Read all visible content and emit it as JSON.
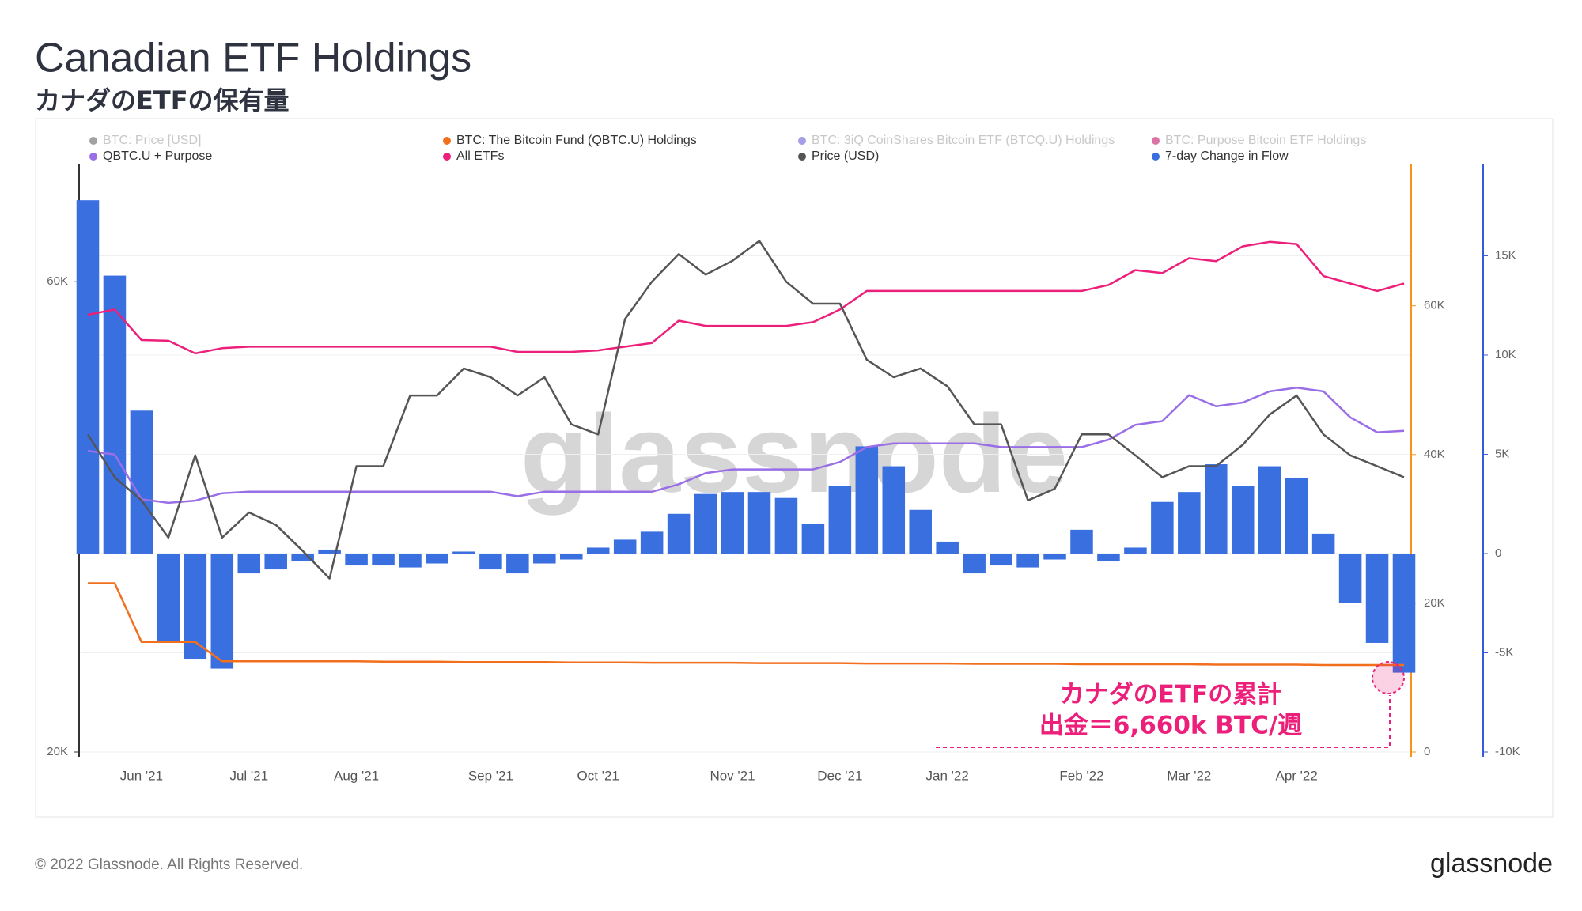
{
  "chart_data": {
    "type": "combo",
    "title": "Canadian ETF Holdings",
    "subtitle": "カナダのETFの保有量",
    "watermark": "glassnode",
    "categories": [
      null,
      null,
      "Jun '21",
      null,
      null,
      null,
      "Jul '21",
      null,
      null,
      null,
      "Aug '21",
      null,
      null,
      null,
      null,
      "Sep '21",
      null,
      null,
      null,
      "Oct '21",
      null,
      null,
      null,
      null,
      "Nov '21",
      null,
      null,
      null,
      "Dec '21",
      null,
      null,
      null,
      "Jan '22",
      null,
      null,
      null,
      null,
      "Feb '22",
      null,
      null,
      null,
      "Mar '22",
      null,
      null,
      null,
      "Apr '22",
      null,
      null,
      null,
      null
    ],
    "log_y": true,
    "ylim": [
      20000,
      78900
    ],
    "yticks": [
      {
        "value": 20000,
        "label": "20K"
      },
      {
        "value": 60000,
        "label": "60K"
      }
    ],
    "y2lim": [
      0,
      79000
    ],
    "y2ticks": [
      0,
      {
        "value": 20000,
        "label": "20K"
      },
      {
        "value": 40000,
        "label": "40K"
      },
      {
        "value": 60000,
        "label": "60K"
      }
    ],
    "y3lim": [
      -10000,
      19600
    ],
    "y3ticks": [
      {
        "value": -10000,
        "label": "-10K"
      },
      {
        "value": -5000,
        "label": "-5K"
      },
      0,
      {
        "value": 5000,
        "label": "5K"
      },
      {
        "value": 10000,
        "label": "10K"
      },
      {
        "value": 15000,
        "label": "15K"
      }
    ],
    "grid": true,
    "series": [
      {
        "name": "BTC: Price [USD]",
        "color": "#555555",
        "hidden": true
      },
      {
        "name": "BTC: The Bitcoin Fund (QBTC.U) Holdings",
        "color": "#f26f1d",
        "type": "line",
        "axis": "y2",
        "values": [
          22700,
          22700,
          14800,
          14800,
          14800,
          12200,
          12200,
          12200,
          12200,
          12200,
          12200,
          12150,
          12150,
          12150,
          12100,
          12100,
          12100,
          12100,
          12050,
          12050,
          12050,
          12000,
          12000,
          12000,
          12000,
          11950,
          11950,
          11950,
          11950,
          11900,
          11900,
          11900,
          11900,
          11850,
          11850,
          11850,
          11850,
          11800,
          11800,
          11800,
          11800,
          11800,
          11750,
          11750,
          11750,
          11750,
          11700,
          11700,
          11700,
          11700
        ]
      },
      {
        "name": "BTC: 3iQ CoinShares Bitcoin ETF (BTCQ.U) Holdings",
        "color": "#5b4fd6",
        "hidden": true
      },
      {
        "name": "BTC: Purpose Bitcoin ETF Holdings",
        "color": "#c0005a",
        "hidden": true
      },
      {
        "name": "QBTC.U + Purpose",
        "color": "#9a6ee6",
        "type": "line",
        "axis": "y2",
        "values": [
          40500,
          40000,
          34000,
          33500,
          33800,
          34800,
          35000,
          35000,
          35000,
          35000,
          35000,
          35000,
          35000,
          35000,
          35000,
          35000,
          34400,
          35000,
          35000,
          35000,
          35000,
          35000,
          36000,
          37500,
          38000,
          38000,
          38000,
          38000,
          39000,
          41000,
          41500,
          41500,
          41500,
          41500,
          41000,
          41000,
          41000,
          41000,
          42000,
          44000,
          44500,
          48000,
          46500,
          47000,
          48500,
          49000,
          48500,
          45000,
          43000,
          43200
        ]
      },
      {
        "name": "All ETFs",
        "color": "#ec1f7a",
        "type": "line",
        "axis": "y2",
        "values": [
          58800,
          59500,
          55400,
          55300,
          53600,
          54300,
          54500,
          54500,
          54500,
          54500,
          54500,
          54500,
          54500,
          54500,
          54500,
          54500,
          53800,
          53800,
          53800,
          54000,
          54500,
          55000,
          58000,
          57300,
          57300,
          57300,
          57300,
          57800,
          59500,
          62000,
          62000,
          62000,
          62000,
          62000,
          62000,
          62000,
          62000,
          62000,
          62800,
          64800,
          64400,
          66400,
          66000,
          68000,
          68600,
          68300,
          64000,
          63000,
          62000,
          63000
        ]
      },
      {
        "name": "Price (USD)",
        "color": "#555555",
        "type": "line",
        "axis": "y",
        "values": [
          42000,
          38000,
          36000,
          33000,
          40000,
          33000,
          35000,
          34000,
          32000,
          30000,
          39000,
          39000,
          46000,
          46000,
          49000,
          48000,
          46000,
          48000,
          43000,
          42000,
          55000,
          60000,
          64000,
          61000,
          63000,
          66000,
          60000,
          57000,
          57000,
          50000,
          48000,
          49000,
          47000,
          43000,
          43000,
          36000,
          37000,
          42000,
          42000,
          40000,
          38000,
          39000,
          39000,
          41000,
          44000,
          46000,
          42000,
          40000,
          39000,
          38000
        ]
      },
      {
        "name": "7-day Change in Flow",
        "color": "#3a6fe0",
        "type": "bar",
        "axis": "y3",
        "values": [
          17800,
          14000,
          7200,
          -4500,
          -5300,
          -5800,
          -1000,
          -800,
          -400,
          200,
          -600,
          -600,
          -700,
          -500,
          100,
          -800,
          -1000,
          -500,
          -300,
          300,
          700,
          1100,
          2000,
          3000,
          3100,
          3100,
          2800,
          1500,
          3400,
          5400,
          4400,
          2200,
          600,
          -1000,
          -600,
          -700,
          -300,
          1200,
          -400,
          300,
          2600,
          3100,
          4500,
          3400,
          4400,
          3800,
          1000,
          -2500,
          -4500,
          -6000
        ]
      }
    ],
    "annotations": [
      "カナダのETFの累計",
      "出金＝6,660k BTC/週"
    ]
  },
  "footer": {
    "copyright": "© 2022 Glassnode. All Rights Reserved.",
    "logo": "glassnode"
  }
}
